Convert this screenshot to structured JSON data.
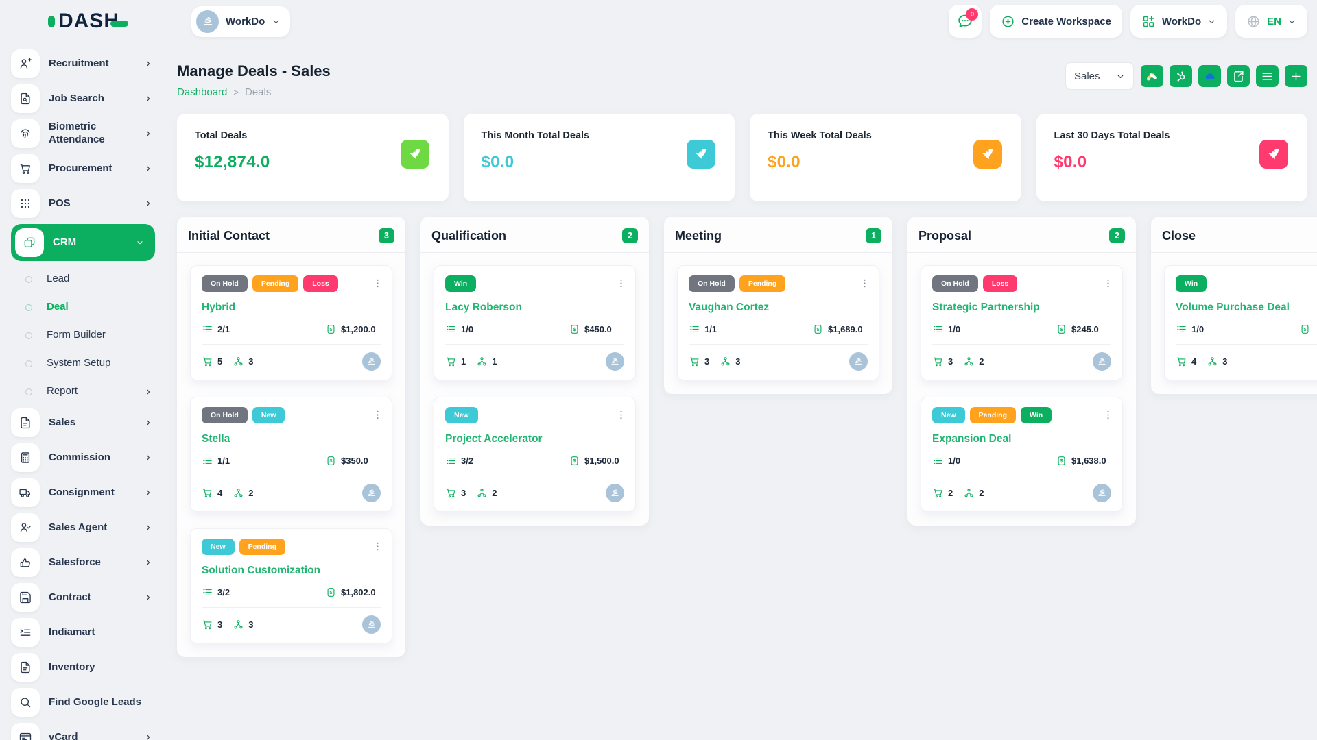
{
  "brand": {
    "logo_text": "DASH"
  },
  "header": {
    "workspace_label": "WorkDo",
    "notification_count": "0",
    "create_workspace_label": "Create Workspace",
    "workdo_menu_label": "WorkDo",
    "language": "EN"
  },
  "sidebar": {
    "items": [
      {
        "label": "Recruitment",
        "icon": "user-plus-icon",
        "chevron": "right"
      },
      {
        "label": "Job Search",
        "icon": "doc-search-icon",
        "chevron": "right"
      },
      {
        "label": "Biometric Attendance",
        "icon": "fingerprint-icon",
        "chevron": "right"
      },
      {
        "label": "Procurement",
        "icon": "cart-icon",
        "chevron": "right"
      },
      {
        "label": "POS",
        "icon": "grid-dots-icon",
        "chevron": "right"
      },
      {
        "label": "CRM",
        "icon": "crm-cards-icon",
        "chevron": "down",
        "active": true
      },
      {
        "label": "Lead",
        "sub": true
      },
      {
        "label": "Deal",
        "sub": true,
        "active": true
      },
      {
        "label": "Form Builder",
        "sub": true
      },
      {
        "label": "System Setup",
        "sub": true
      },
      {
        "label": "Report",
        "sub": true,
        "chevron": "right"
      },
      {
        "label": "Sales",
        "icon": "doc-icon",
        "chevron": "right"
      },
      {
        "label": "Commission",
        "icon": "calculator-icon",
        "chevron": "right"
      },
      {
        "label": "Consignment",
        "icon": "truck-icon",
        "chevron": "right"
      },
      {
        "label": "Sales Agent",
        "icon": "user-check-icon",
        "chevron": "right"
      },
      {
        "label": "Salesforce",
        "icon": "thumb-up-icon",
        "chevron": "right"
      },
      {
        "label": "Contract",
        "icon": "floppy-icon",
        "chevron": "right"
      },
      {
        "label": "Indiamart",
        "icon": "list-arrow-icon"
      },
      {
        "label": "Inventory",
        "icon": "doc-icon"
      },
      {
        "label": "Find Google Leads",
        "icon": "search-icon"
      },
      {
        "label": "vCard",
        "icon": "id-card-icon",
        "chevron": "right"
      }
    ]
  },
  "page": {
    "title": "Manage Deals - Sales",
    "breadcrumb": {
      "home": "Dashboard",
      "current": "Deals"
    },
    "pipeline_select": "Sales",
    "toolbar_buttons": [
      {
        "icon": "google-ads-icon"
      },
      {
        "icon": "hubspot-icon"
      },
      {
        "icon": "onedrive-icon"
      },
      {
        "icon": "export-file-icon"
      },
      {
        "icon": "list-view-icon"
      },
      {
        "icon": "plus-icon"
      }
    ]
  },
  "stats": [
    {
      "label": "Total Deals",
      "value": "$12,874.0",
      "value_color": "#0caf60",
      "tile_color": "#6fd943",
      "icon": "rocket-icon"
    },
    {
      "label": "This Month Total Deals",
      "value": "$0.0",
      "value_color": "#3ec9d6",
      "tile_color": "#3ec9d6",
      "icon": "rocket-icon"
    },
    {
      "label": "This Week Total Deals",
      "value": "$0.0",
      "value_color": "#ffa21d",
      "tile_color": "#ffa21d",
      "icon": "rocket-icon"
    },
    {
      "label": "Last 30 Days Total Deals",
      "value": "$0.0",
      "value_color": "#ff3a6e",
      "tile_color": "#ff3a6e",
      "icon": "rocket-icon"
    }
  ],
  "board": {
    "tag_colors": {
      "On Hold": "#717580",
      "Pending": "#ffa21d",
      "Loss": "#ff3a6e",
      "New": "#3ec9d6",
      "Win": "#0caf60"
    },
    "columns": [
      {
        "name": "Initial Contact",
        "count": "3",
        "cards": [
          {
            "tags": [
              "On Hold",
              "Pending",
              "Loss"
            ],
            "title": "Hybrid",
            "tasks": "2/1",
            "amount": "$1,200.0",
            "products": "5",
            "users": "3"
          },
          {
            "tags": [
              "On Hold",
              "New"
            ],
            "title": "Stella",
            "tasks": "1/1",
            "amount": "$350.0",
            "products": "4",
            "users": "2"
          },
          {
            "tags": [
              "New",
              "Pending"
            ],
            "title": "Solution Customization",
            "tasks": "3/2",
            "amount": "$1,802.0",
            "products": "3",
            "users": "3"
          }
        ]
      },
      {
        "name": "Qualification",
        "count": "2",
        "cards": [
          {
            "tags": [
              "Win"
            ],
            "title": "Lacy Roberson",
            "tasks": "1/0",
            "amount": "$450.0",
            "products": "1",
            "users": "1"
          },
          {
            "tags": [
              "New"
            ],
            "title": "Project Accelerator",
            "tasks": "3/2",
            "amount": "$1,500.0",
            "products": "3",
            "users": "2"
          }
        ]
      },
      {
        "name": "Meeting",
        "count": "1",
        "cards": [
          {
            "tags": [
              "On Hold",
              "Pending"
            ],
            "title": "Vaughan Cortez",
            "tasks": "1/1",
            "amount": "$1,689.0",
            "products": "3",
            "users": "3"
          }
        ]
      },
      {
        "name": "Proposal",
        "count": "2",
        "cards": [
          {
            "tags": [
              "On Hold",
              "Loss"
            ],
            "title": "Strategic Partnership",
            "tasks": "1/0",
            "amount": "$245.0",
            "products": "3",
            "users": "2"
          },
          {
            "tags": [
              "New",
              "Pending",
              "Win"
            ],
            "title": "Expansion Deal",
            "tasks": "1/0",
            "amount": "$1,638.0",
            "products": "2",
            "users": "2"
          }
        ]
      },
      {
        "name": "Close",
        "count": "",
        "cards": [
          {
            "tags": [
              "Win"
            ],
            "title": "Volume Purchase Deal",
            "tasks": "1/0",
            "amount": "",
            "products": "4",
            "users": "3"
          }
        ]
      }
    ]
  }
}
